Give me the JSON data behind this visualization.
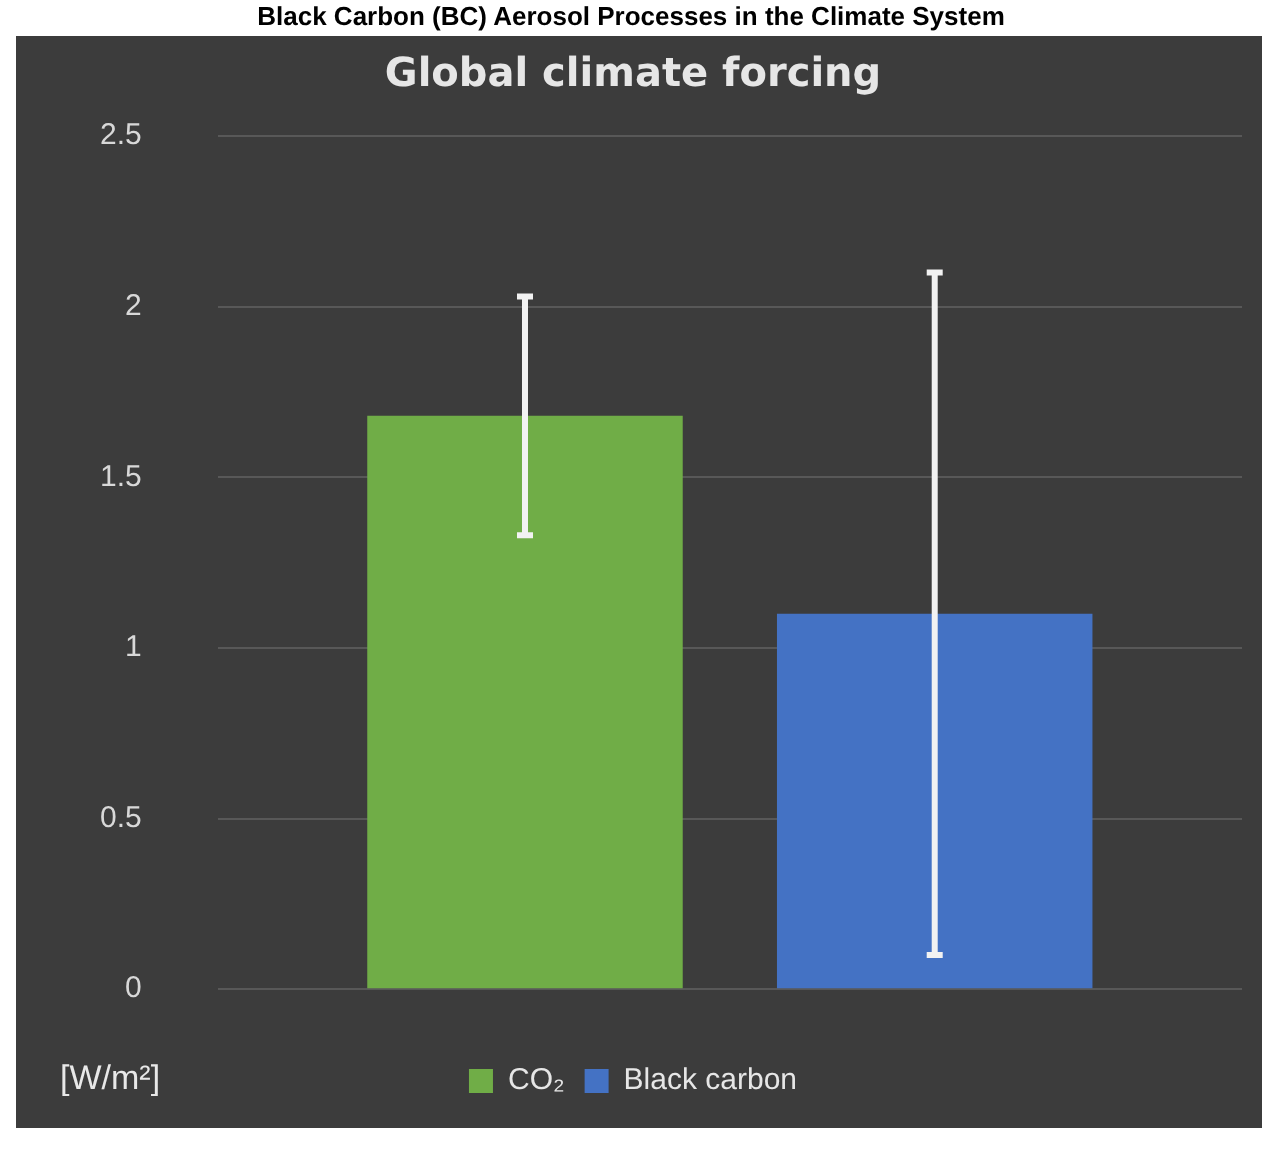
{
  "chart_data": {
    "type": "bar",
    "title": "Global climate forcing",
    "ylabel": "[W/m²]",
    "annotations": [
      "Black Carbon (BC) Aerosol Processes in the Climate System"
    ],
    "categories": [
      null
    ],
    "series": [
      {
        "name": "CO₂",
        "color": "#70ad47",
        "values": [
          1.68
        ],
        "errors": [
          [
            1.33,
            2.03
          ]
        ]
      },
      {
        "name": "Black carbon",
        "color": "#4472c4",
        "values": [
          1.1
        ],
        "errors": [
          [
            0.1,
            2.1
          ]
        ]
      }
    ],
    "ylim": [
      0,
      2.5
    ],
    "yticks": [
      0,
      0.5,
      1,
      1.5,
      2,
      2.5
    ],
    "grid": "y",
    "legend": "bottom"
  }
}
